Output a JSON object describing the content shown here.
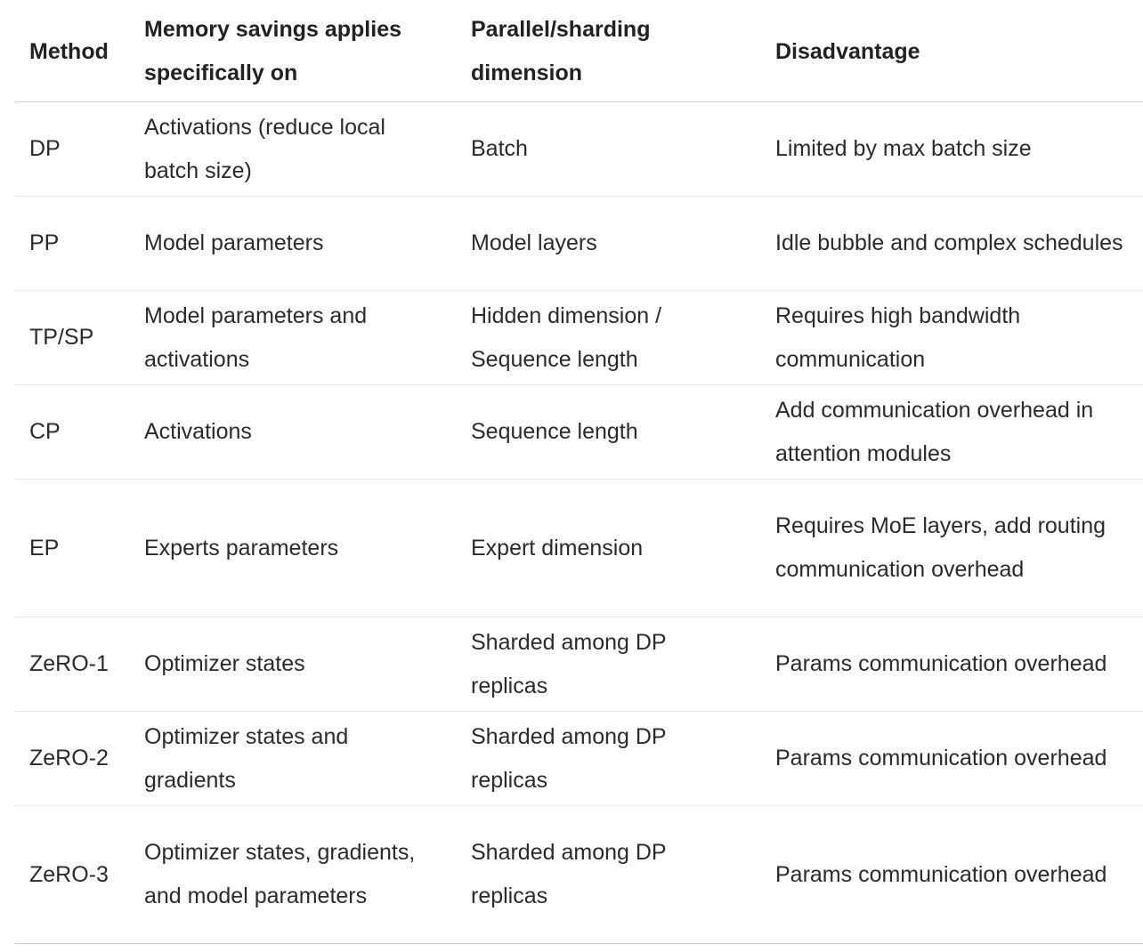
{
  "table": {
    "headers": [
      "Method",
      "Memory savings applies specifically on",
      "Parallel/sharding dimension",
      "Disadvantage"
    ],
    "rows": [
      [
        "DP",
        "Activations (reduce local batch size)",
        "Batch",
        "Limited by max batch size"
      ],
      [
        "PP",
        "Model parameters",
        "Model layers",
        "Idle bubble and complex schedules"
      ],
      [
        "TP/SP",
        "Model parameters and activations",
        "Hidden dimension / Sequence length",
        "Requires high bandwidth communication"
      ],
      [
        "CP",
        "Activations",
        "Sequence length",
        "Add communication overhead in attention modules"
      ],
      [
        "EP",
        "Experts parameters",
        "Expert dimension",
        "Requires MoE layers, add routing communication overhead"
      ],
      [
        "ZeRO-1",
        "Optimizer states",
        "Sharded among DP replicas",
        "Params communication overhead"
      ],
      [
        "ZeRO-2",
        "Optimizer states and gradients",
        "Sharded among DP replicas",
        "Params communication overhead"
      ],
      [
        "ZeRO-3",
        "Optimizer states, gradients, and model parameters",
        "Sharded among DP replicas",
        "Params communication overhead"
      ]
    ]
  }
}
